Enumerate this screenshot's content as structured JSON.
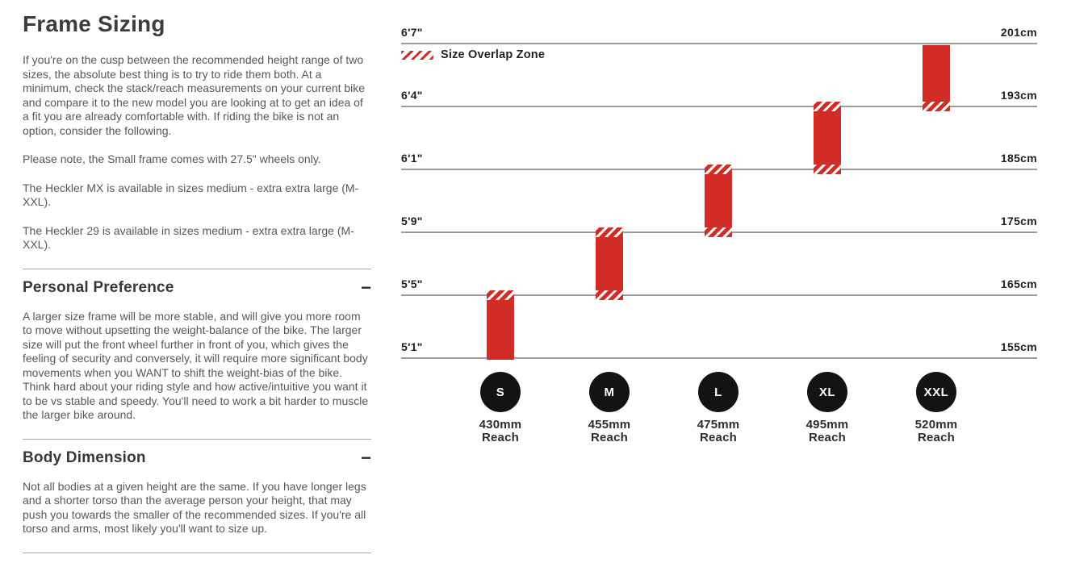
{
  "left_column": {
    "title": "Frame Sizing",
    "paragraphs": [
      "If you're on the cusp between the recommended height range of two sizes, the absolute best thing is to try to ride them both. At a minimum, check the stack/reach measurements on your current bike and compare it to the new model you are looking at to get an idea of a fit you are already comfortable with. If riding the bike is not an option, consider the following.",
      "Please note, the Small frame comes with 27.5\" wheels only.",
      "The Heckler MX is available in sizes medium - extra extra large (M-XXL).",
      "The Heckler 29 is available in sizes medium - extra extra large (M-XXL)."
    ],
    "sections": [
      {
        "heading": "Personal Preference",
        "toggle": "−",
        "body": "A larger size frame will be more stable, and will give you more room to move without upsetting the weight-balance of the bike. The larger size will put the front wheel further in front of you, which gives the feeling of security and conversely, it will require more significant body movements when you WANT to shift the weight-bias of the bike. Think hard about your riding style and how active/intuitive you want it to be vs stable and speedy. You'll need to work a bit harder to muscle the larger bike around."
      },
      {
        "heading": "Body Dimension",
        "toggle": "−",
        "body": "Not all bodies at a given height are the same. If you have longer legs and a shorter torso than the average person your height, that may push you towards the smaller of the recommended sizes. If you're all torso and arms, most likely you'll want to size up."
      }
    ]
  },
  "chart_data": {
    "type": "bar",
    "subtype": "vertical-range-bars-by-rider-height",
    "legend": {
      "label": "Size Overlap Zone",
      "swatch": "red-diagonal-hatch"
    },
    "y_axis": {
      "left_unit": "feet-inches",
      "right_unit": "centimeters",
      "ticks_top_to_bottom": [
        {
          "imperial": "6'7\"",
          "metric": "201cm"
        },
        {
          "imperial": "6'4\"",
          "metric": "193cm"
        },
        {
          "imperial": "6'1\"",
          "metric": "185cm"
        },
        {
          "imperial": "5'9\"",
          "metric": "175cm"
        },
        {
          "imperial": "5'5\"",
          "metric": "165cm"
        },
        {
          "imperial": "5'1\"",
          "metric": "155cm"
        }
      ]
    },
    "sizes": [
      {
        "label": "S",
        "reach": "430mm",
        "reach_caption": "Reach",
        "height_range_imperial": "5'1\" - 5'5\"",
        "height_range_metric": "155cm - 165cm",
        "top_tick": 4,
        "bottom_tick": 5,
        "overlap_top": true,
        "overlap_bottom": false
      },
      {
        "label": "M",
        "reach": "455mm",
        "reach_caption": "Reach",
        "height_range_imperial": "5'5\" - 5'9\"",
        "height_range_metric": "165cm - 175cm",
        "top_tick": 3,
        "bottom_tick": 4,
        "overlap_top": true,
        "overlap_bottom": true
      },
      {
        "label": "L",
        "reach": "475mm",
        "reach_caption": "Reach",
        "height_range_imperial": "5'9\" - 6'1\"",
        "height_range_metric": "175cm - 185cm",
        "top_tick": 2,
        "bottom_tick": 3,
        "overlap_top": true,
        "overlap_bottom": true
      },
      {
        "label": "XL",
        "reach": "495mm",
        "reach_caption": "Reach",
        "height_range_imperial": "6'1\" - 6'4\"",
        "height_range_metric": "185cm - 193cm",
        "top_tick": 1,
        "bottom_tick": 2,
        "overlap_top": true,
        "overlap_bottom": true
      },
      {
        "label": "XXL",
        "reach": "520mm",
        "reach_caption": "Reach",
        "height_range_imperial": "6'4\" - 6'7\"",
        "height_range_metric": "193cm - 201cm",
        "top_tick": 0,
        "bottom_tick": 1,
        "overlap_top": false,
        "overlap_bottom": true
      }
    ],
    "colors": {
      "bar_red": "#d22c27",
      "gridline": "#9b9b9b",
      "circle_black": "#131313"
    }
  }
}
